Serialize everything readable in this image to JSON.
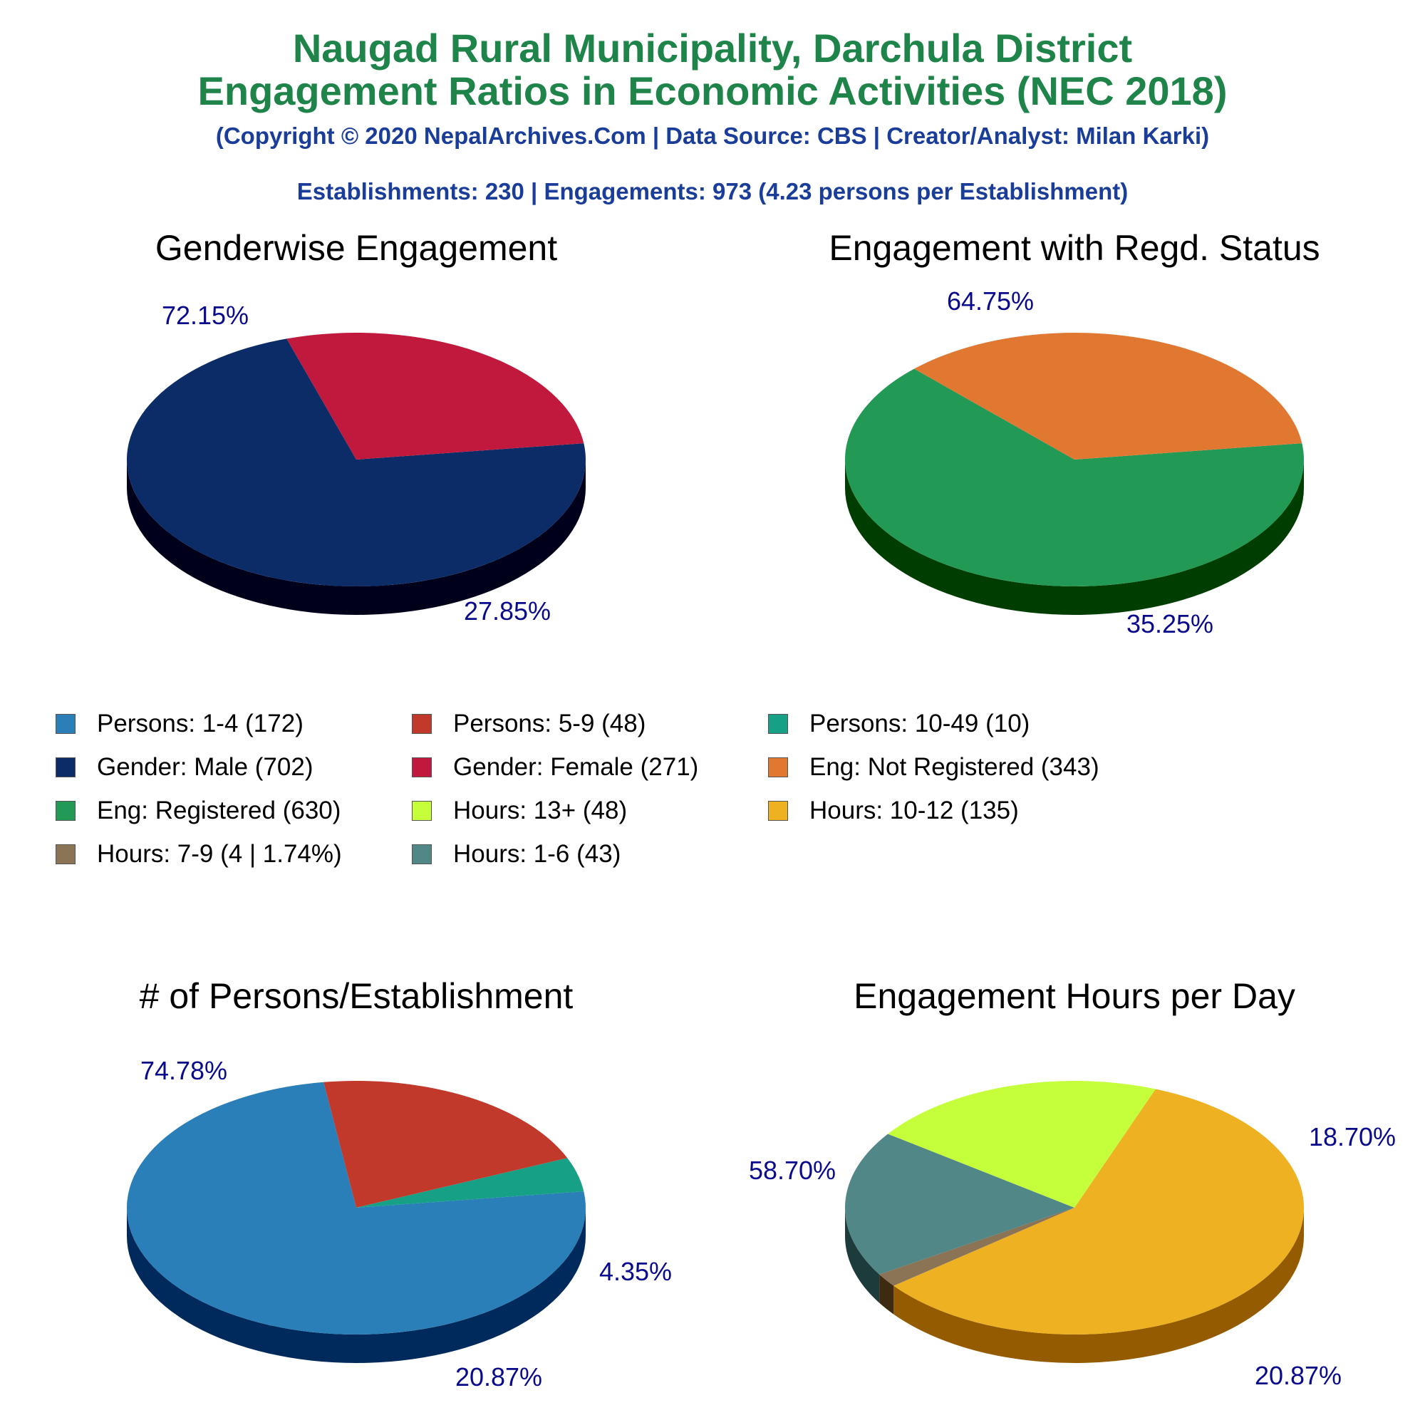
{
  "header": {
    "title_line1": "Naugad Rural Municipality, Darchula District",
    "title_line2": "Engagement Ratios in Economic Activities (NEC 2018)",
    "copyright": "(Copyright © 2020 NepalArchives.Com | Data Source: CBS | Creator/Analyst: Milan Karki)",
    "summary": "Establishments: 230 | Engagements: 973 (4.23 persons per Establishment)"
  },
  "legend": [
    {
      "label": "Persons: 1-4 (172)",
      "color": "#2a7fb8"
    },
    {
      "label": "Persons: 5-9 (48)",
      "color": "#c0392b"
    },
    {
      "label": "Persons: 10-49 (10)",
      "color": "#16a085"
    },
    {
      "label": "Gender: Male (702)",
      "color": "#0b2c66"
    },
    {
      "label": "Gender: Female (271)",
      "color": "#c0193d"
    },
    {
      "label": "Eng: Not Registered (343)",
      "color": "#e07832"
    },
    {
      "label": "Eng: Registered (630)",
      "color": "#229954"
    },
    {
      "label": "Hours: 13+ (48)",
      "color": "#c5ff3c"
    },
    {
      "label": "Hours: 10-12 (135)",
      "color": "#edb122"
    },
    {
      "label": "Hours: 7-9 (4 | 1.74%)",
      "color": "#8b7355"
    },
    {
      "label": "Hours: 1-6 (43)",
      "color": "#528787"
    }
  ],
  "chart_data": [
    {
      "type": "pie",
      "title": "Genderwise Engagement",
      "slices": [
        {
          "label": "Gender: Male",
          "value": 702,
          "percent_label": "72.15%",
          "color": "#0b2c66",
          "side_color": "#00001a"
        },
        {
          "label": "Gender: Female",
          "value": 271,
          "percent_label": "27.85%",
          "color": "#c0193d",
          "side_color": "#6b0000"
        }
      ]
    },
    {
      "type": "pie",
      "title": "Engagement with Regd. Status",
      "slices": [
        {
          "label": "Eng: Registered",
          "value": 630,
          "percent_label": "64.75%",
          "color": "#229954",
          "side_color": "#003d00"
        },
        {
          "label": "Eng: Not Registered",
          "value": 343,
          "percent_label": "35.25%",
          "color": "#e07832",
          "side_color": "#7a1a00"
        }
      ]
    },
    {
      "type": "pie",
      "title": "# of Persons/Establishment",
      "slices": [
        {
          "label": "Persons: 1-4",
          "value": 172,
          "percent_label": "74.78%",
          "color": "#2a7fb8",
          "side_color": "#002a5c"
        },
        {
          "label": "Persons: 5-9",
          "value": 48,
          "percent_label": "20.87%",
          "color": "#c0392b",
          "side_color": "#660000"
        },
        {
          "label": "Persons: 10-49",
          "value": 10,
          "percent_label": "4.35%",
          "color": "#16a085",
          "side_color": "#004a33"
        }
      ]
    },
    {
      "type": "pie",
      "title": "Engagement Hours per Day",
      "slices": [
        {
          "label": "Hours: 10-12",
          "value": 135,
          "percent_label": "58.70%",
          "color": "#edb122",
          "side_color": "#945b00"
        },
        {
          "label": "Hours: 7-9",
          "value": 4,
          "percent_label": "",
          "color": "#8b7355",
          "side_color": "#3d2a10"
        },
        {
          "label": "Hours: 1-6",
          "value": 43,
          "percent_label": "18.70%",
          "color": "#528787",
          "side_color": "#1e3b3b"
        },
        {
          "label": "Hours: 13+",
          "value": 48,
          "percent_label": "20.87%",
          "color": "#c5ff3c",
          "side_color": "#66a300"
        }
      ]
    }
  ]
}
